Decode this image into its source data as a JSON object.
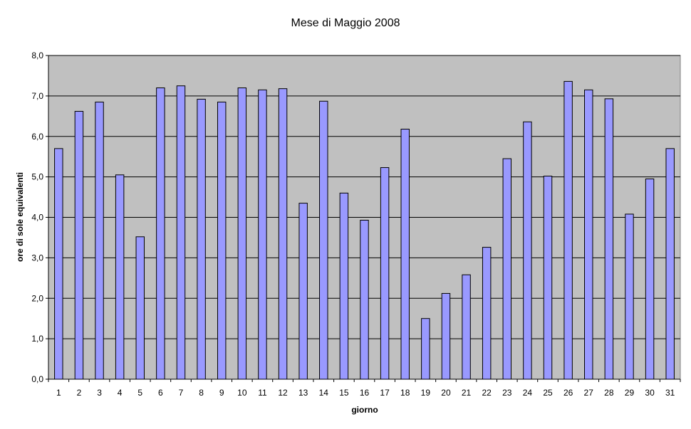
{
  "chart_data": {
    "type": "bar",
    "title": "Mese di Maggio 2008",
    "xlabel": "giorno",
    "ylabel": "ore di sole equivalenti",
    "categories": [
      "1",
      "2",
      "3",
      "4",
      "5",
      "6",
      "7",
      "8",
      "9",
      "10",
      "11",
      "12",
      "13",
      "14",
      "15",
      "16",
      "17",
      "18",
      "19",
      "20",
      "21",
      "22",
      "23",
      "24",
      "25",
      "26",
      "27",
      "28",
      "29",
      "30",
      "31"
    ],
    "values": [
      5.7,
      6.62,
      6.85,
      5.05,
      3.52,
      7.2,
      7.25,
      6.92,
      6.85,
      7.2,
      7.15,
      7.18,
      4.35,
      6.87,
      4.6,
      3.93,
      5.23,
      6.18,
      1.5,
      2.12,
      2.58,
      3.26,
      5.45,
      6.36,
      5.02,
      7.36,
      7.15,
      6.93,
      4.08,
      4.95,
      5.7
    ],
    "ylim": [
      0,
      8
    ],
    "yticks": [
      "0,0",
      "1,0",
      "2,0",
      "3,0",
      "4,0",
      "5,0",
      "6,0",
      "7,0",
      "8,0"
    ],
    "grid": true,
    "legend": "none",
    "colors": {
      "plot_background": "#c0c0c0",
      "bar_fill": "#9999ff",
      "bar_stroke": "#000000",
      "gridline": "#000000",
      "page_background": "#ffffff"
    }
  }
}
